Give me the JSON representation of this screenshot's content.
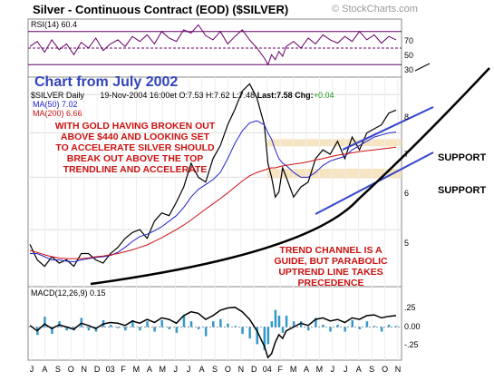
{
  "header": {
    "title": "Silver - Continuous Contract (EOD) ($SILVER)",
    "credit": "© StockCharts.com"
  },
  "rsi": {
    "label": "RSI(14)",
    "value": "60.4",
    "levels": [
      70,
      50,
      30
    ],
    "tick_labels": [
      "70",
      "50",
      "30"
    ]
  },
  "banner": {
    "text": "Chart from July 2002"
  },
  "quote": {
    "symbol": "$SILVER Daily",
    "date": "19-Nov-2004 16:00et",
    "o_label": "O:",
    "o": "7.53",
    "h_label": "H:",
    "h": "7.62",
    "l_label": "L:",
    "l": "7.48",
    "last_label": "Last:",
    "last": "7.58",
    "chg_label": "Chg:",
    "chg": "+0.04"
  },
  "legend": {
    "ma50_label": "MA(50)",
    "ma50_value": "7.02",
    "ma200_label": "MA(200)",
    "ma200_value": "6.66"
  },
  "annotations": {
    "gold_line1": "WITH GOLD HAVING BROKEN OUT",
    "gold_line2": "ABOVE $440 AND LOOKING SET",
    "gold_line3": "TO ACCELERATE SILVER SHOULD",
    "gold_line4": "BREAK OUT ABOVE THE TOP",
    "gold_line5": "TRENDLINE AND ACCELERATE",
    "trend_line1": "TREND CHANNEL IS A",
    "trend_line2": "GUIDE, BUT PARABOLIC",
    "trend_line3": "UPTREND LINE TAKES",
    "trend_line4": "PRECEDENCE",
    "support_upper": "SUPPORT",
    "support_lower": "SUPPORT"
  },
  "macd": {
    "label": "MACD(12,26,9)",
    "value": "0.15",
    "tick_labels": [
      ".25",
      "0.00",
      "-.25"
    ]
  },
  "colors": {
    "price": "#000000",
    "ma50": "#2222cc",
    "ma200": "#cc1111",
    "rsi_line": "#660066",
    "support_band": "#f5deb3",
    "channel": "#3344cc",
    "histogram": "#3399cc",
    "annotation": "#cc1111"
  },
  "chart_data": {
    "type": "line",
    "title": "Silver - Continuous Contract (EOD) ($SILVER)",
    "x_tick_labels": [
      "J",
      "A",
      "S",
      "O",
      "N",
      "D",
      "03",
      "F",
      "M",
      "A",
      "M",
      "J",
      "J",
      "A",
      "S",
      "O",
      "N",
      "D",
      "04",
      "F",
      "M",
      "A",
      "M",
      "J",
      "J",
      "A",
      "S",
      "O",
      "N"
    ],
    "y_tick_labels": [
      "8",
      "7",
      "6",
      "5"
    ],
    "ylim": [
      4.1,
      8.5
    ],
    "x": [
      0,
      4,
      8,
      12,
      16,
      20,
      24,
      28,
      32,
      36,
      40,
      44,
      48,
      52,
      56,
      60,
      64,
      68,
      72,
      76,
      80,
      84,
      88,
      92,
      96,
      100,
      104,
      108,
      112,
      116,
      120,
      124,
      128,
      130,
      132,
      134,
      136,
      138,
      140,
      144,
      148,
      152,
      156,
      160,
      164,
      168,
      172,
      176,
      180,
      184,
      188,
      192,
      196,
      200
    ],
    "series": [
      {
        "name": "price",
        "values": [
          4.75,
          4.5,
          4.4,
          4.55,
          4.45,
          4.5,
          4.4,
          4.6,
          4.6,
          4.5,
          4.45,
          4.6,
          4.7,
          4.85,
          4.95,
          5.0,
          4.85,
          5.15,
          5.3,
          5.25,
          5.5,
          5.8,
          6.3,
          6.0,
          5.9,
          6.4,
          6.7,
          7.2,
          7.6,
          8.1,
          8.3,
          7.9,
          7.2,
          6.3,
          6.0,
          5.6,
          5.7,
          6.2,
          6.0,
          5.6,
          5.8,
          5.9,
          6.4,
          6.6,
          6.5,
          6.8,
          6.4,
          6.9,
          6.6,
          7.0,
          7.1,
          7.2,
          7.5,
          7.58
        ]
      },
      {
        "name": "MA(50)",
        "values": [
          4.6,
          4.6,
          4.55,
          4.5,
          4.5,
          4.48,
          4.47,
          4.5,
          4.52,
          4.54,
          4.55,
          4.57,
          4.62,
          4.7,
          4.8,
          4.88,
          4.92,
          4.98,
          5.05,
          5.15,
          5.25,
          5.4,
          5.6,
          5.75,
          5.85,
          5.95,
          6.1,
          6.4,
          6.75,
          7.05,
          7.25,
          7.3,
          7.2,
          7.0,
          6.85,
          6.6,
          6.4,
          6.3,
          6.25,
          6.1,
          6.0,
          6.0,
          6.1,
          6.25,
          6.35,
          6.4,
          6.45,
          6.6,
          6.7,
          6.8,
          6.9,
          6.95,
          7.0,
          7.02
        ]
      },
      {
        "name": "MA(200)",
        "values": [
          4.65,
          4.62,
          4.58,
          4.55,
          4.53,
          4.52,
          4.52,
          4.52,
          4.53,
          4.55,
          4.56,
          4.58,
          4.6,
          4.63,
          4.66,
          4.7,
          4.74,
          4.8,
          4.86,
          4.93,
          5.0,
          5.08,
          5.17,
          5.27,
          5.37,
          5.47,
          5.57,
          5.68,
          5.8,
          5.92,
          6.03,
          6.1,
          6.15,
          6.18,
          6.2,
          6.2,
          6.22,
          6.24,
          6.25,
          6.28,
          6.3,
          6.33,
          6.37,
          6.4,
          6.44,
          6.48,
          6.5,
          6.53,
          6.56,
          6.58,
          6.6,
          6.62,
          6.64,
          6.66
        ]
      }
    ],
    "rsi_values": [
      52,
      58,
      45,
      60,
      48,
      55,
      42,
      57,
      50,
      62,
      47,
      55,
      60,
      52,
      64,
      58,
      66,
      55,
      70,
      62,
      58,
      72,
      68,
      78,
      65,
      60,
      70,
      55,
      64,
      72,
      60,
      50,
      38,
      30,
      42,
      36,
      46,
      40,
      52,
      58,
      50,
      62,
      55,
      66,
      60,
      56,
      64,
      58,
      70,
      60,
      66,
      56,
      64,
      60
    ],
    "macd_values": [
      0.02,
      -0.05,
      0.04,
      -0.02,
      0.03,
      0.0,
      -0.03,
      0.05,
      0.02,
      -0.02,
      0.04,
      0.06,
      0.05,
      0.02,
      0.08,
      0.05,
      0.1,
      0.06,
      0.12,
      0.1,
      0.05,
      0.15,
      0.2,
      0.18,
      0.1,
      0.15,
      0.22,
      0.25,
      0.26,
      0.2,
      0.1,
      -0.05,
      -0.25,
      -0.4,
      -0.35,
      -0.2,
      -0.1,
      -0.15,
      -0.05,
      0.0,
      0.05,
      0.02,
      0.1,
      0.12,
      0.08,
      0.1,
      0.06,
      0.12,
      0.1,
      0.15,
      0.16,
      0.12,
      0.14,
      0.15
    ],
    "support_zones": [
      [
        6.68,
        6.85
      ],
      [
        5.98,
        6.18
      ]
    ]
  }
}
